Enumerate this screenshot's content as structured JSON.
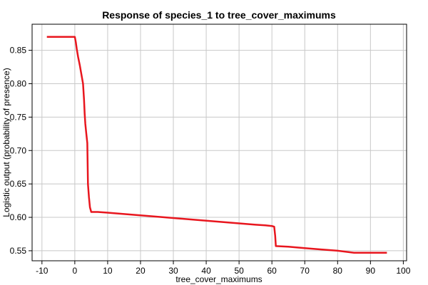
{
  "chart_data": {
    "type": "line",
    "title": "Response of species_1 to tree_cover_maximums",
    "xlabel": "tree_cover_maximums",
    "ylabel": "Logistic output (probability of presence)",
    "xlim": [
      -13,
      101
    ],
    "ylim": [
      0.535,
      0.889
    ],
    "x_ticks": [
      -10,
      0,
      10,
      20,
      30,
      40,
      50,
      60,
      70,
      80,
      90,
      100
    ],
    "y_ticks": [
      0.55,
      0.6,
      0.65,
      0.7,
      0.75,
      0.8,
      0.85
    ],
    "grid": true,
    "line_color": "#e8161e",
    "series": [
      {
        "x": [
          -8.5,
          0,
          0.3,
          0.6,
          1,
          1.5,
          2,
          2.5,
          2.8,
          3,
          3.2,
          3.5,
          3.8,
          4,
          4.3,
          4.6,
          5,
          7,
          10,
          15,
          20,
          25,
          30,
          35,
          40,
          45,
          50,
          55,
          58,
          60,
          60.7,
          61,
          61.2,
          65,
          70,
          75,
          80,
          85,
          90,
          95
        ],
        "y": [
          0.87,
          0.87,
          0.862,
          0.852,
          0.84,
          0.828,
          0.814,
          0.8,
          0.776,
          0.755,
          0.74,
          0.725,
          0.711,
          0.65,
          0.63,
          0.615,
          0.608,
          0.608,
          0.607,
          0.605,
          0.603,
          0.601,
          0.599,
          0.597,
          0.595,
          0.593,
          0.591,
          0.589,
          0.588,
          0.587,
          0.586,
          0.572,
          0.557,
          0.556,
          0.554,
          0.552,
          0.55,
          0.547,
          0.547,
          0.547
        ]
      }
    ]
  }
}
